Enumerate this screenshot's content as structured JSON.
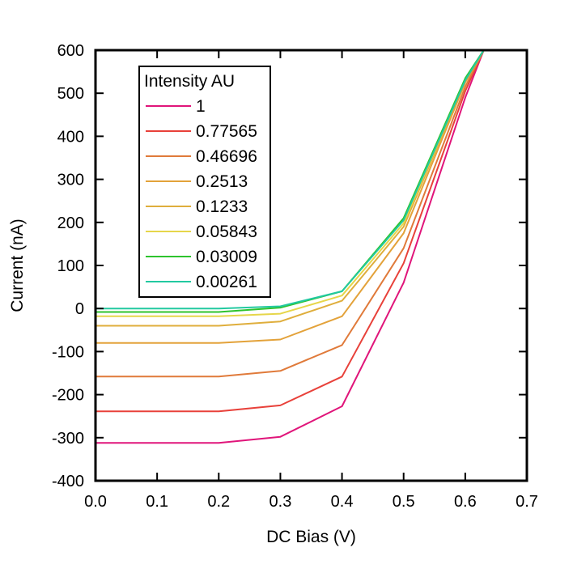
{
  "chart_data": {
    "type": "line",
    "title": "",
    "xlabel": "DC Bias (V)",
    "ylabel": "Current (nA)",
    "xlim": [
      0.0,
      0.7
    ],
    "ylim": [
      -400,
      600
    ],
    "x_ticks": [
      0.0,
      0.1,
      0.2,
      0.3,
      0.4,
      0.5,
      0.6,
      0.7
    ],
    "x_tick_labels": [
      "0.0",
      "0.1",
      "0.2",
      "0.3",
      "0.4",
      "0.5",
      "0.6",
      "0.7"
    ],
    "y_ticks": [
      -400,
      -300,
      -200,
      -100,
      0,
      100,
      200,
      300,
      400,
      500,
      600
    ],
    "y_tick_labels": [
      "-400",
      "-300",
      "-200",
      "-100",
      "0",
      "100",
      "200",
      "300",
      "400",
      "500",
      "600"
    ],
    "grid": false,
    "legend": {
      "title": "Intensity AU",
      "position": "top-left"
    },
    "x": [
      0.0,
      0.2,
      0.3,
      0.4,
      0.5,
      0.6,
      0.63
    ],
    "series": [
      {
        "name": "1",
        "color": "#e0157a",
        "values": [
          -312,
          -312,
          -298,
          -227,
          60,
          490,
          600
        ]
      },
      {
        "name": "0.77565",
        "color": "#e8413a",
        "values": [
          -239,
          -239,
          -225,
          -158,
          105,
          505,
          600
        ]
      },
      {
        "name": "0.46696",
        "color": "#e07a3a",
        "values": [
          -158,
          -158,
          -145,
          -85,
          140,
          515,
          600
        ]
      },
      {
        "name": "0.2513",
        "color": "#e3a23a",
        "values": [
          -80,
          -80,
          -72,
          -18,
          175,
          525,
          600
        ]
      },
      {
        "name": "0.1233",
        "color": "#dfae3c",
        "values": [
          -40,
          -40,
          -30,
          18,
          190,
          530,
          600
        ]
      },
      {
        "name": "0.05843",
        "color": "#e6d64a",
        "values": [
          -18,
          -18,
          -12,
          30,
          198,
          532,
          600
        ]
      },
      {
        "name": "0.03009",
        "color": "#2ec32e",
        "values": [
          -8,
          -8,
          2,
          40,
          210,
          535,
          600
        ]
      },
      {
        "name": "0.00261",
        "color": "#22c9a0",
        "values": [
          0,
          0,
          5,
          40,
          205,
          530,
          600
        ]
      }
    ]
  }
}
